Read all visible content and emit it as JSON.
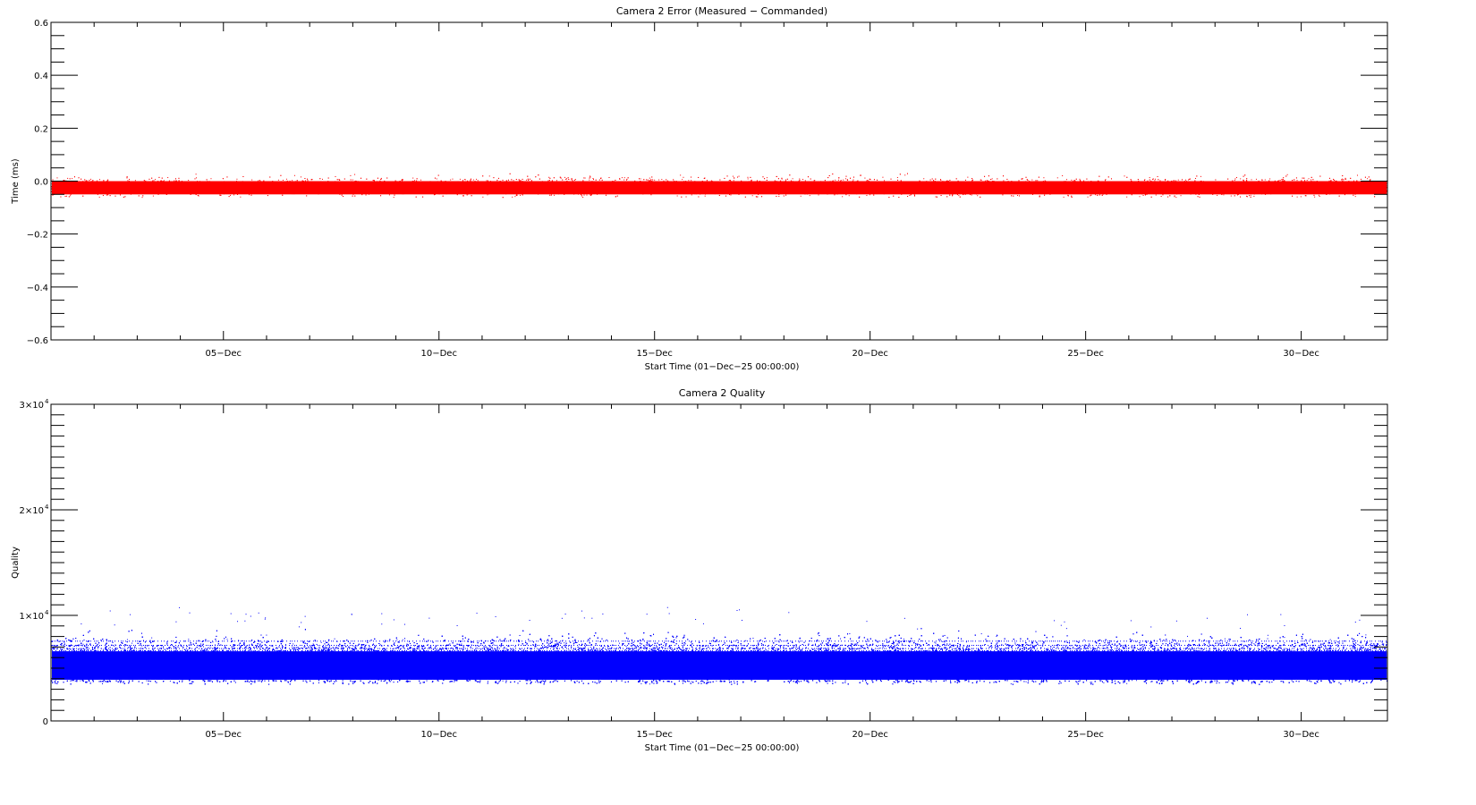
{
  "chart_data": [
    {
      "type": "scatter",
      "title": "Camera 2 Error (Measured − Commanded)",
      "xlabel": "Start Time (01−Dec−25 00:00:00)",
      "ylabel": "Time (ms)",
      "xlim": [
        "01-Dec",
        "32-Dec"
      ],
      "ylim": [
        -0.6,
        0.6
      ],
      "x_tick_labels": [
        "05−Dec",
        "10−Dec",
        "15−Dec",
        "20−Dec",
        "25−Dec",
        "30−Dec"
      ],
      "y_tick_labels": [
        "0.6",
        "0.4",
        "0.2",
        "0.0",
        "−0.2",
        "−0.4",
        "−0.6"
      ],
      "color": "#ff0000",
      "grid": false,
      "series": [
        {
          "x_range_days": [
            1,
            32
          ],
          "band_core": [
            -0.05,
            0.0
          ],
          "band_spread": [
            -0.06,
            0.03
          ],
          "center": -0.02
        }
      ]
    },
    {
      "type": "scatter",
      "title": "Camera 2 Quality",
      "xlabel": "Start Time (01−Dec−25 00:00:00)",
      "ylabel": "Quality",
      "xlim": [
        "01-Dec",
        "32-Dec"
      ],
      "ylim": [
        0,
        30000
      ],
      "x_tick_labels": [
        "05−Dec",
        "10−Dec",
        "15−Dec",
        "20−Dec",
        "25−Dec",
        "30−Dec"
      ],
      "y_tick_labels": [
        {
          "mantissa": "3×10",
          "exp": "4"
        },
        {
          "mantissa": "2×10",
          "exp": "4"
        },
        {
          "mantissa": "1×10",
          "exp": "4"
        },
        {
          "mantissa": "0",
          "exp": ""
        }
      ],
      "color": "#0000ff",
      "grid": false,
      "series": [
        {
          "x_range_days": [
            1,
            32
          ],
          "band_core": [
            3900,
            6600
          ],
          "band_spread": [
            3500,
            8800
          ],
          "outlier_max": 10800,
          "center": 5000
        }
      ]
    }
  ]
}
